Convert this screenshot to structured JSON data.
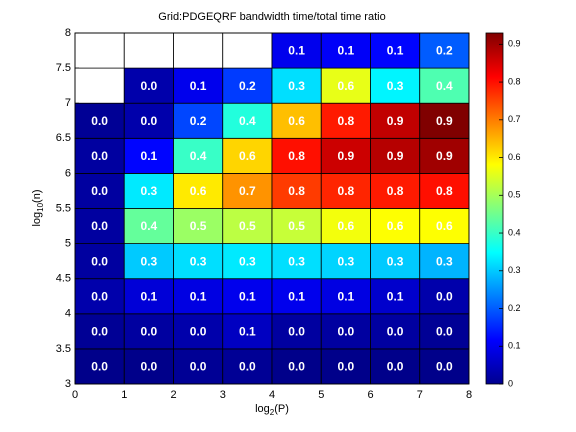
{
  "chart_data": {
    "type": "heatmap",
    "title": "Grid:PDGEQRF bandwidth time/total time ratio",
    "xlabel": {
      "base": "log",
      "sub": "2",
      "rest": "(P)"
    },
    "ylabel": {
      "base": "log",
      "sub": "10",
      "rest": "(n)"
    },
    "x_edges": [
      0,
      1,
      2,
      3,
      4,
      5,
      6,
      7,
      8
    ],
    "y_edges": [
      3,
      3.5,
      4,
      4.5,
      5,
      5.5,
      6,
      6.5,
      7,
      7.5,
      8
    ],
    "z": [
      [
        0.01,
        0.01,
        0.02,
        0.02,
        0.01,
        0.01,
        0.01,
        0.01
      ],
      [
        0.02,
        0.03,
        0.04,
        0.06,
        0.03,
        0.03,
        0.03,
        0.02
      ],
      [
        0.04,
        0.08,
        0.09,
        0.1,
        0.1,
        0.09,
        0.07,
        0.04
      ],
      [
        0.03,
        0.3,
        0.32,
        0.33,
        0.32,
        0.31,
        0.3,
        0.28
      ],
      [
        0.03,
        0.44,
        0.49,
        0.52,
        0.53,
        0.57,
        0.58,
        0.58
      ],
      [
        0.03,
        0.33,
        0.6,
        0.68,
        0.76,
        0.78,
        0.79,
        0.8
      ],
      [
        0.03,
        0.12,
        0.4,
        0.62,
        0.8,
        0.86,
        0.88,
        0.9
      ],
      [
        0.02,
        0.04,
        0.18,
        0.38,
        0.64,
        0.79,
        0.87,
        0.93
      ],
      [
        null,
        0.04,
        0.1,
        0.17,
        0.32,
        0.56,
        0.34,
        0.42
      ],
      [
        null,
        null,
        null,
        null,
        0.1,
        0.11,
        0.12,
        0.2
      ]
    ],
    "value_labels": [
      [
        "0.0",
        "0.0",
        "0.0",
        "0.0",
        "0.0",
        "0.0",
        "0.0",
        "0.0"
      ],
      [
        "0.0",
        "0.0",
        "0.0",
        "0.1",
        "0.0",
        "0.0",
        "0.0",
        "0.0"
      ],
      [
        "0.0",
        "0.1",
        "0.1",
        "0.1",
        "0.1",
        "0.1",
        "0.1",
        "0.0"
      ],
      [
        "0.0",
        "0.3",
        "0.3",
        "0.3",
        "0.3",
        "0.3",
        "0.3",
        "0.3"
      ],
      [
        "0.0",
        "0.4",
        "0.5",
        "0.5",
        "0.5",
        "0.6",
        "0.6",
        "0.6"
      ],
      [
        "0.0",
        "0.3",
        "0.6",
        "0.7",
        "0.8",
        "0.8",
        "0.8",
        "0.8"
      ],
      [
        "0.0",
        "0.1",
        "0.4",
        "0.6",
        "0.8",
        "0.9",
        "0.9",
        "0.9"
      ],
      [
        "0.0",
        "0.0",
        "0.2",
        "0.4",
        "0.6",
        "0.8",
        "0.9",
        "0.9"
      ],
      [
        null,
        "0.0",
        "0.1",
        "0.2",
        "0.3",
        "0.6",
        "0.3",
        "0.4"
      ],
      [
        null,
        null,
        null,
        null,
        "0.1",
        "0.1",
        "0.1",
        "0.2"
      ]
    ],
    "xlim": [
      0,
      8
    ],
    "xticks": [
      0,
      1,
      2,
      3,
      4,
      5,
      6,
      7,
      8
    ],
    "ylim": [
      3,
      8
    ],
    "yticks": [
      3,
      3.5,
      4,
      4.5,
      5,
      5.5,
      6,
      6.5,
      7,
      7.5,
      8
    ],
    "colormap": "jet",
    "clim": [
      0,
      0.93
    ],
    "cticks": [
      0,
      0.1,
      0.2,
      0.3,
      0.4,
      0.5,
      0.6,
      0.7,
      0.8,
      0.9
    ]
  }
}
